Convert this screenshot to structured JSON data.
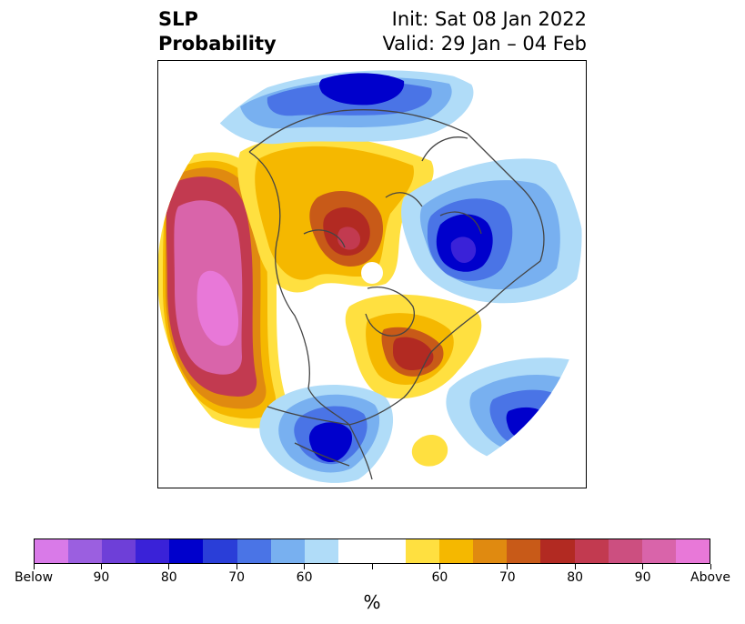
{
  "title": {
    "left_line1": "SLP",
    "left_line2": "Probability",
    "right_line1": "Init: Sat 08 Jan 2022",
    "right_line2": "Valid: 29 Jan – 04 Feb"
  },
  "colorbar": {
    "colors": [
      "#d97ae8",
      "#9b5fe0",
      "#6e3fd8",
      "#3a22d8",
      "#0000cc",
      "#2a3ed8",
      "#4a74e6",
      "#78b0f0",
      "#b0dcf8",
      "#ffffff",
      "#ffffff",
      "#ffe040",
      "#f5b800",
      "#e08a10",
      "#c85a18",
      "#b22a22",
      "#c23a50",
      "#cc4f80",
      "#d964aa",
      "#e878d8"
    ],
    "tick_labels": [
      "Below",
      "90",
      "80",
      "70",
      "60",
      "",
      "60",
      "70",
      "80",
      "90",
      "Above"
    ],
    "unit_label": "%"
  },
  "map": {
    "projection": "north-polar-stereographic",
    "colors": {
      "above_strong": "#e878d8",
      "above_90": "#d964aa",
      "above_80": "#c23a50",
      "above_70": "#c85a18",
      "above_60": "#f5b800",
      "above_50": "#ffe040",
      "below_50": "#b0dcf8",
      "below_60": "#78b0f0",
      "below_70": "#4a74e6",
      "below_80": "#0000cc",
      "below_90": "#3a22d8",
      "coast": "#444444"
    }
  }
}
